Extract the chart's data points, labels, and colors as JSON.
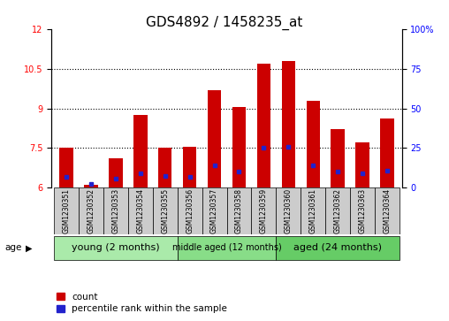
{
  "title": "GDS4892 / 1458235_at",
  "samples": [
    "GSM1230351",
    "GSM1230352",
    "GSM1230353",
    "GSM1230354",
    "GSM1230355",
    "GSM1230356",
    "GSM1230357",
    "GSM1230358",
    "GSM1230359",
    "GSM1230360",
    "GSM1230361",
    "GSM1230362",
    "GSM1230363",
    "GSM1230364"
  ],
  "count_values": [
    7.5,
    6.1,
    7.1,
    8.75,
    7.5,
    7.55,
    9.7,
    9.05,
    10.7,
    10.8,
    9.3,
    8.2,
    7.7,
    8.6
  ],
  "percentile_values": [
    6.4,
    6.15,
    6.35,
    6.55,
    6.45,
    6.4,
    6.85,
    6.6,
    7.5,
    7.55,
    6.85,
    6.6,
    6.55,
    6.65
  ],
  "ylim_left": [
    6,
    12
  ],
  "ylim_right": [
    0,
    100
  ],
  "yticks_left": [
    6,
    7.5,
    9,
    10.5,
    12
  ],
  "yticks_right": [
    0,
    25,
    50,
    75,
    100
  ],
  "bar_color": "#cc0000",
  "dot_color": "#2222cc",
  "bar_width": 0.55,
  "groups": [
    {
      "label": "young (2 months)",
      "start": 0,
      "end": 5,
      "color": "#aaeaaa",
      "fontsize": 8
    },
    {
      "label": "middle aged (12 months)",
      "start": 5,
      "end": 9,
      "color": "#88dd88",
      "fontsize": 7
    },
    {
      "label": "aged (24 months)",
      "start": 9,
      "end": 14,
      "color": "#66cc66",
      "fontsize": 8
    }
  ],
  "sample_box_color": "#cccccc",
  "plot_bg": "#ffffff",
  "title_fontsize": 11,
  "tick_fontsize": 7,
  "label_fontsize": 8
}
